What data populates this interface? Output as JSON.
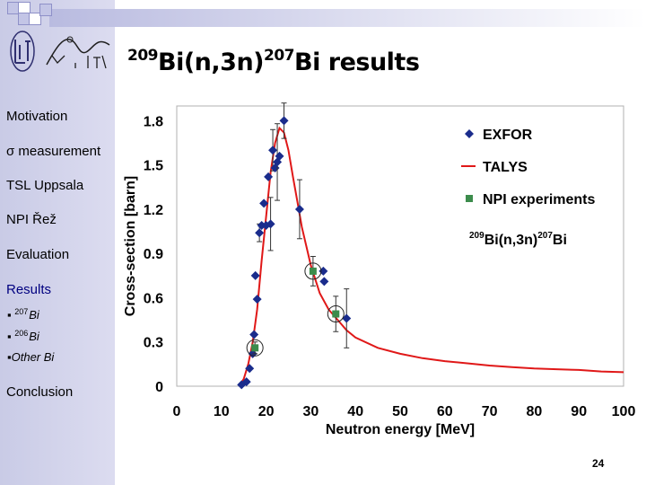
{
  "slide": {
    "title_mass_a": "209",
    "title_elem_a": "Bi(n,3n)",
    "title_mass_b": "207",
    "title_elem_b": "Bi results",
    "page_number": "24"
  },
  "sidebar": {
    "items": [
      {
        "label": "Motivation"
      },
      {
        "label": "σ measurement"
      },
      {
        "label": "TSL Uppsala"
      },
      {
        "label": "NPI Řež"
      },
      {
        "label": "Evaluation"
      },
      {
        "label": "Results"
      },
      {
        "label": "Conclusion"
      }
    ],
    "subitems": [
      {
        "bullet": "▪",
        "mass": "207",
        "elem": "Bi"
      },
      {
        "bullet": "▪",
        "mass": "206",
        "elem": "Bi"
      },
      {
        "bullet": "▪",
        "mass": "",
        "elem": "Other Bi"
      }
    ]
  },
  "chart_data": {
    "type": "scatter",
    "xlabel": "Neutron energy [MeV]",
    "ylabel": "Cross-section [barn]",
    "xlim": [
      0,
      100
    ],
    "ylim": [
      0,
      1.9
    ],
    "xticks": [
      0,
      10,
      20,
      30,
      40,
      50,
      60,
      70,
      80,
      90,
      100
    ],
    "yticks": [
      0,
      0.3,
      0.6,
      0.9,
      1.2,
      1.5,
      1.8
    ],
    "ytick_labels": [
      "0",
      "0.3",
      "0.6",
      "0.9",
      "1.2",
      "1.5",
      "1.8"
    ],
    "annotation": {
      "mass_a": "209",
      "text_a": "Bi(n,3n)",
      "mass_b": "207",
      "text_b": "Bi"
    },
    "legend": [
      {
        "name": "EXFOR",
        "marker": "diamond",
        "color": "#1a2c8c"
      },
      {
        "name": "TALYS",
        "marker": "line",
        "color": "#e01818"
      },
      {
        "name": "NPI experiments",
        "marker": "square",
        "color": "#3c8c4c"
      }
    ],
    "series": [
      {
        "name": "EXFOR",
        "color": "#1a2c8c",
        "x": [
          14.5,
          15.6,
          16.3,
          17.0,
          17.3,
          17.6,
          18.0,
          18.5,
          19.0,
          19.5,
          20.0,
          20.5,
          21.0,
          21.5,
          22.0,
          22.5,
          23.0,
          24.0,
          27.5,
          32.8,
          33.0,
          38.0
        ],
        "y": [
          0.01,
          0.03,
          0.12,
          0.22,
          0.35,
          0.75,
          0.59,
          1.04,
          1.09,
          1.24,
          1.09,
          1.42,
          1.1,
          1.6,
          1.48,
          1.52,
          1.56,
          1.8,
          1.2,
          0.78,
          0.71,
          0.46
        ],
        "err": [
          0,
          0,
          0,
          0,
          0,
          0,
          0,
          0.06,
          0,
          0,
          0,
          0,
          0.18,
          0.14,
          0,
          0.26,
          0,
          0.12,
          0.2,
          0,
          0,
          0.2
        ]
      },
      {
        "name": "NPI experiments",
        "color": "#3c8c4c",
        "x": [
          17.5,
          30.5,
          35.6
        ],
        "y": [
          0.26,
          0.78,
          0.49
        ],
        "err": [
          0.04,
          0.1,
          0.12
        ]
      },
      {
        "name": "TALYS",
        "color": "#e01818",
        "x": [
          14,
          15,
          16,
          17,
          18,
          19,
          20,
          21,
          22,
          23,
          24,
          25,
          26,
          27,
          28,
          29,
          30,
          32,
          34,
          36,
          38,
          40,
          45,
          50,
          55,
          60,
          65,
          70,
          75,
          80,
          85,
          90,
          95,
          100
        ],
        "y": [
          0.0,
          0.05,
          0.15,
          0.3,
          0.52,
          0.85,
          1.15,
          1.45,
          1.65,
          1.75,
          1.72,
          1.6,
          1.42,
          1.25,
          1.08,
          0.95,
          0.82,
          0.63,
          0.52,
          0.45,
          0.38,
          0.33,
          0.26,
          0.22,
          0.19,
          0.17,
          0.155,
          0.14,
          0.13,
          0.12,
          0.115,
          0.11,
          0.1,
          0.095
        ]
      }
    ],
    "circled_points": [
      {
        "x": 17.5,
        "y": 0.26
      },
      {
        "x": 30.5,
        "y": 0.78
      },
      {
        "x": 35.6,
        "y": 0.49
      }
    ]
  }
}
